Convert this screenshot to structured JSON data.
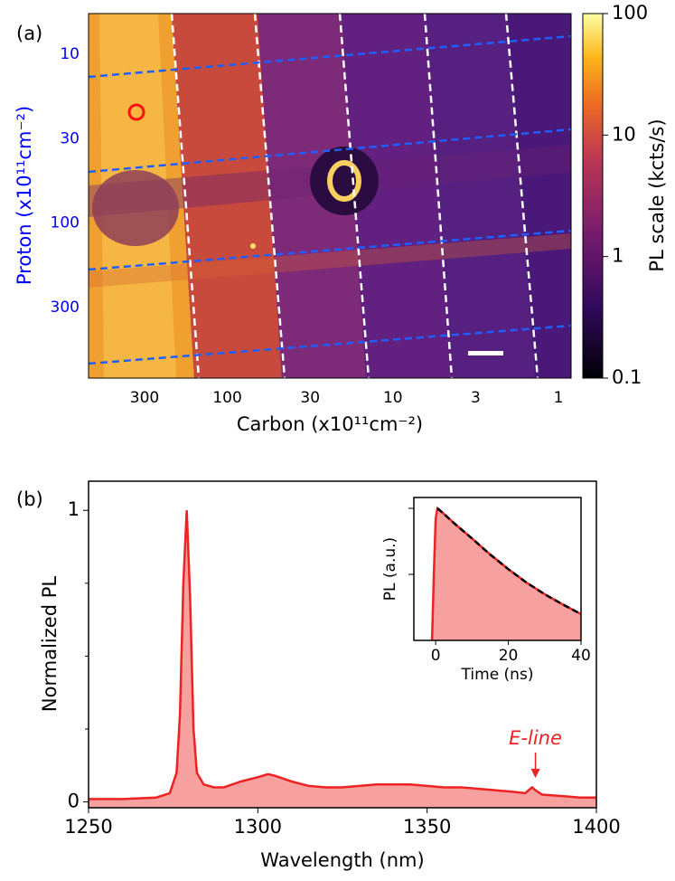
{
  "chart_data": [
    {
      "type": "heatmap",
      "panel_label": "(a)",
      "x_label": "Carbon (x10¹¹cm⁻²)",
      "y_label": "Proton (x10¹¹cm⁻²)",
      "x_categories": [
        "300",
        "100",
        "30",
        "10",
        "3",
        "1"
      ],
      "y_categories": [
        "10",
        "30",
        "100",
        "300"
      ],
      "y_label_color": "#0000ff",
      "colorbar": {
        "label": "PL scale (kcts/s)",
        "lim": [
          0.1,
          100
        ],
        "ticks": [
          0.1,
          1,
          10,
          100
        ],
        "log": true
      }
    },
    {
      "type": "line",
      "panel_label": "(b)",
      "x_label": "Wavelength (nm)",
      "y_label": "Normalized PL",
      "x": [
        1250,
        1260,
        1270,
        1274,
        1276,
        1277,
        1278,
        1279,
        1280,
        1281,
        1282,
        1284,
        1287,
        1290,
        1295,
        1300,
        1303,
        1305,
        1310,
        1315,
        1320,
        1325,
        1330,
        1335,
        1340,
        1345,
        1350,
        1355,
        1360,
        1365,
        1370,
        1375,
        1379,
        1381,
        1382,
        1384,
        1390,
        1395,
        1400
      ],
      "series": [
        {
          "color": "#ee2222",
          "fill": "#f6a0a0",
          "values": [
            0.01,
            0.01,
            0.015,
            0.03,
            0.1,
            0.3,
            0.75,
            1.0,
            0.7,
            0.25,
            0.1,
            0.06,
            0.05,
            0.05,
            0.07,
            0.085,
            0.095,
            0.09,
            0.07,
            0.055,
            0.05,
            0.05,
            0.055,
            0.06,
            0.06,
            0.06,
            0.055,
            0.05,
            0.05,
            0.045,
            0.04,
            0.035,
            0.03,
            0.05,
            0.04,
            0.025,
            0.02,
            0.015,
            0.015
          ]
        }
      ],
      "xlim": [
        1250,
        1400
      ],
      "xticks": [
        1250,
        1300,
        1350,
        1400
      ],
      "ylim": [
        -0.02,
        1.1
      ],
      "yticks": [
        0,
        1
      ],
      "yminorticks": [
        0.25,
        0.5,
        0.75
      ],
      "annotation": {
        "text": "E-line",
        "x": 1382,
        "color": "#ee2222"
      }
    },
    {
      "type": "inset",
      "x_label": "Time (ns)",
      "y_label": "PL (a.u.)",
      "x": [
        -1,
        -0.5,
        0,
        0.5,
        2,
        5,
        10,
        15,
        20,
        25,
        30,
        35,
        40
      ],
      "series": [
        {
          "color": "#ee2222",
          "fill": "#f6a0a0",
          "values": [
            0.01,
            0.1,
            0.7,
            1.0,
            0.85,
            0.6,
            0.35,
            0.2,
            0.12,
            0.075,
            0.05,
            0.035,
            0.025
          ]
        },
        {
          "color": "#000000",
          "dashed": true,
          "values": [
            null,
            null,
            null,
            1.0,
            0.85,
            0.6,
            0.35,
            0.2,
            0.12,
            0.075,
            0.05,
            0.035,
            0.025
          ]
        }
      ],
      "xlim": [
        -6,
        40
      ],
      "xticks": [
        0,
        20,
        40
      ],
      "ylim": [
        0.01,
        1.46
      ],
      "ylog": true,
      "yticks_unlabeled": [
        0.1,
        1
      ]
    }
  ]
}
